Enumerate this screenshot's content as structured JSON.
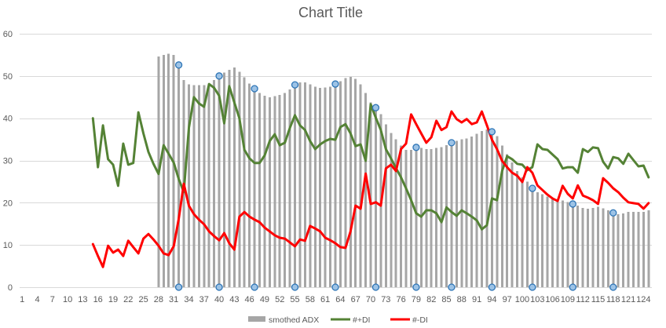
{
  "chart_data": {
    "type": "bar",
    "title": "Chart Title",
    "xlim": [
      1,
      125
    ],
    "ylim": [
      0,
      60
    ],
    "grid": true,
    "legend": "bottom",
    "x_ticks": [
      "1",
      "4",
      "7",
      "10",
      "13",
      "16",
      "19",
      "22",
      "25",
      "28",
      "31",
      "34",
      "37",
      "40",
      "43",
      "46",
      "49",
      "52",
      "55",
      "58",
      "61",
      "64",
      "67",
      "70",
      "73",
      "76",
      "79",
      "82",
      "85",
      "88",
      "91",
      "94",
      "97",
      "100",
      "103",
      "106",
      "109",
      "112",
      "115",
      "118",
      "121",
      "124"
    ],
    "y_ticks": [
      "0",
      "10",
      "20",
      "30",
      "40",
      "50",
      "60"
    ],
    "series": [
      {
        "name": "smothed ADX",
        "type": "bar",
        "color": "#a6a6a6",
        "x_start": 28,
        "values": [
          54.6,
          55.0,
          55.3,
          55.0,
          52.6,
          49.0,
          48.0,
          47.8,
          47.8,
          47.8,
          48.2,
          49.0,
          50.0,
          50.8,
          51.5,
          52.0,
          51.0,
          49.7,
          48.2,
          47.0,
          46.0,
          45.3,
          45.0,
          45.2,
          45.5,
          46.0,
          46.8,
          47.9,
          48.5,
          48.5,
          48.0,
          47.5,
          47.2,
          47.3,
          47.5,
          48.1,
          48.8,
          49.5,
          49.8,
          49.3,
          48.0,
          46.0,
          43.7,
          42.5,
          41.0,
          38.5,
          36.5,
          35.0,
          33.5,
          32.5,
          32.5,
          33.1,
          33.0,
          32.7,
          32.7,
          33.0,
          33.2,
          33.6,
          34.2,
          34.6,
          35.0,
          35.2,
          35.7,
          36.3,
          37.0,
          37.3,
          36.8,
          35.8,
          33.5,
          31.5,
          29.5,
          27.5,
          26.0,
          25.0,
          23.4,
          22.5,
          22.0,
          21.5,
          21.2,
          20.8,
          20.5,
          20.2,
          19.7,
          19.3,
          18.8,
          18.6,
          18.8,
          19.0,
          18.7,
          18.2,
          17.6,
          17.3,
          17.5,
          17.8,
          17.8,
          17.8,
          17.8,
          18.2
        ]
      },
      {
        "name": "#+DI",
        "type": "line",
        "color": "#548235",
        "x_start": 15,
        "values": [
          40.0,
          28.4,
          38.3,
          30.3,
          29.0,
          24.0,
          34.0,
          29.0,
          29.4,
          41.4,
          36.4,
          32.0,
          29.2,
          26.8,
          33.6,
          31.6,
          29.5,
          25.6,
          22.5,
          37.7,
          45.0,
          43.5,
          42.7,
          48.1,
          47.2,
          45.3,
          38.8,
          47.6,
          43.7,
          40.0,
          32.5,
          30.5,
          29.4,
          29.4,
          31.2,
          34.6,
          36.2,
          33.6,
          34.2,
          37.7,
          40.7,
          38.3,
          37.2,
          34.6,
          32.7,
          33.8,
          34.6,
          35.1,
          34.9,
          37.9,
          38.6,
          36.4,
          33.4,
          33.8,
          29.9,
          43.3,
          40.1,
          37.2,
          32.7,
          30.5,
          28.2,
          26.0,
          23.4,
          20.6,
          17.5,
          16.7,
          18.2,
          18.2,
          17.5,
          15.4,
          18.9,
          17.8,
          16.9,
          18.2,
          17.5,
          16.7,
          15.8,
          13.7,
          14.7,
          21.0,
          20.6,
          27.5,
          31.0,
          30.3,
          29.2,
          29.0,
          27.7,
          28.4,
          33.8,
          32.7,
          32.5,
          31.4,
          30.3,
          28.1,
          28.4,
          28.4,
          27.1,
          32.7,
          32.0,
          33.1,
          32.9,
          29.7,
          28.1,
          30.8,
          30.5,
          29.2,
          31.6,
          30.1,
          28.6,
          28.8,
          26.0
        ]
      },
      {
        "name": "#-DI",
        "type": "line",
        "color": "#ff0000",
        "x_start": 15,
        "values": [
          10.2,
          7.4,
          4.8,
          9.8,
          8.2,
          8.9,
          7.4,
          11.0,
          9.5,
          8.0,
          11.5,
          12.6,
          11.3,
          9.8,
          8.0,
          7.6,
          9.7,
          16.2,
          24.5,
          19.3,
          17.3,
          16.0,
          14.9,
          13.2,
          12.1,
          11.1,
          12.8,
          10.4,
          8.9,
          16.7,
          17.8,
          16.7,
          16.0,
          15.4,
          14.1,
          13.2,
          12.3,
          11.7,
          11.5,
          10.6,
          9.7,
          11.3,
          11.0,
          14.5,
          13.9,
          13.2,
          11.7,
          11.1,
          10.4,
          9.5,
          9.3,
          13.2,
          19.3,
          18.6,
          26.9,
          19.7,
          20.1,
          19.3,
          28.1,
          29.0,
          27.5,
          32.7,
          34.0,
          40.9,
          38.6,
          36.4,
          34.2,
          35.5,
          39.4,
          37.2,
          37.9,
          41.6,
          39.8,
          39.0,
          39.8,
          38.6,
          39.0,
          41.6,
          38.3,
          34.9,
          32.7,
          29.9,
          28.4,
          27.1,
          26.4,
          24.9,
          28.4,
          27.1,
          24.1,
          23.0,
          21.9,
          21.0,
          20.4,
          24.0,
          22.1,
          21.0,
          24.1,
          21.7,
          21.2,
          20.6,
          19.7,
          25.8,
          24.7,
          23.4,
          22.5,
          21.2,
          20.1,
          19.9,
          19.7,
          18.6,
          19.9
        ]
      }
    ],
    "markers": {
      "fill": "#9dc3e6",
      "stroke": "#2e75b6",
      "points": [
        {
          "x": 32,
          "y": 52.6
        },
        {
          "x": 32,
          "y": 0
        },
        {
          "x": 40,
          "y": 50.0
        },
        {
          "x": 40,
          "y": 0
        },
        {
          "x": 47,
          "y": 47.0
        },
        {
          "x": 47,
          "y": 0
        },
        {
          "x": 55,
          "y": 47.9
        },
        {
          "x": 55,
          "y": 0
        },
        {
          "x": 63,
          "y": 48.1
        },
        {
          "x": 63,
          "y": 0
        },
        {
          "x": 71,
          "y": 42.5
        },
        {
          "x": 71,
          "y": 0
        },
        {
          "x": 79,
          "y": 33.1
        },
        {
          "x": 79,
          "y": 0
        },
        {
          "x": 86,
          "y": 34.2
        },
        {
          "x": 86,
          "y": 0
        },
        {
          "x": 94,
          "y": 36.8
        },
        {
          "x": 94,
          "y": 0
        },
        {
          "x": 102,
          "y": 23.4
        },
        {
          "x": 102,
          "y": 0
        },
        {
          "x": 110,
          "y": 19.7
        },
        {
          "x": 110,
          "y": 0
        },
        {
          "x": 118,
          "y": 17.6
        },
        {
          "x": 118,
          "y": 0
        }
      ]
    }
  }
}
